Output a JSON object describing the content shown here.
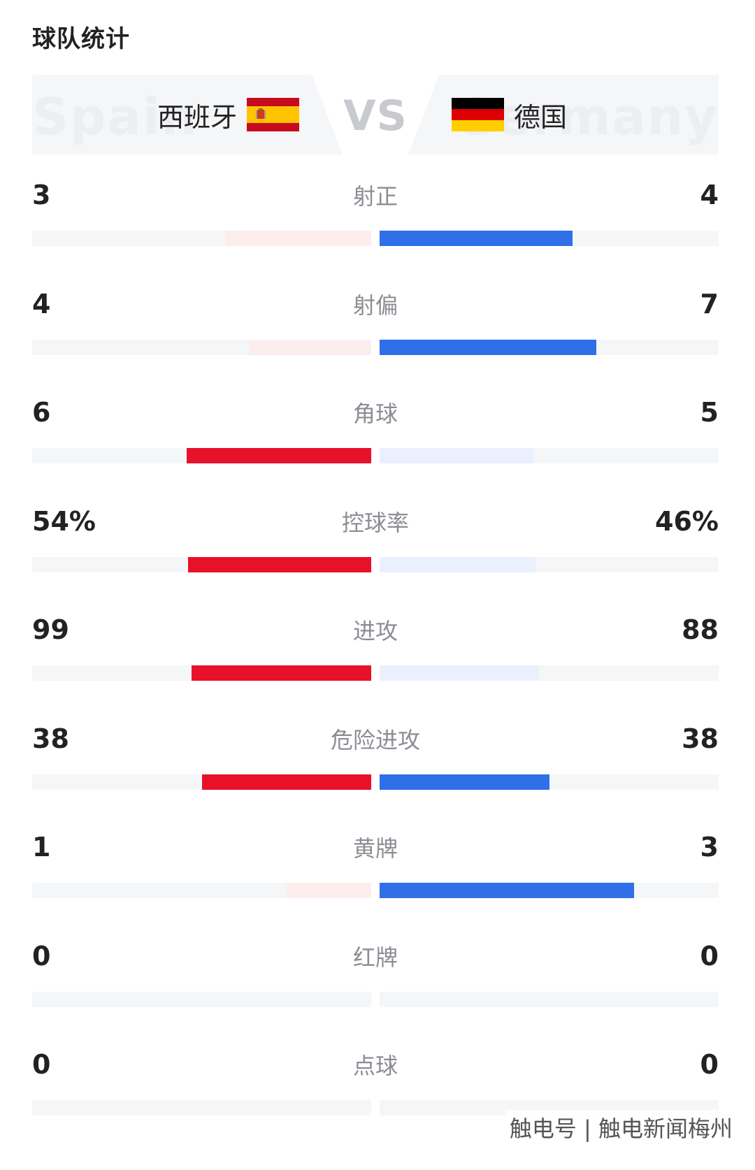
{
  "section_title": "球队统计",
  "teams": {
    "home": {
      "name": "西班牙",
      "watermark": "Spain",
      "flag": "spain-flag-icon"
    },
    "away": {
      "name": "德国",
      "watermark": "Germany",
      "flag": "germany-flag-icon"
    },
    "vs_label": "VS"
  },
  "colors": {
    "home_strong": "#e8112a",
    "home_weak": "#fdeeee",
    "away_strong": "#2f6fe8",
    "away_weak": "#eaf0fd",
    "track": "#f5f6f8"
  },
  "stats": [
    {
      "label": "射正",
      "home": "3",
      "away": "4",
      "home_fill": 0.43,
      "away_fill": 0.57,
      "leader": "away"
    },
    {
      "label": "射偏",
      "home": "4",
      "away": "7",
      "home_fill": 0.36,
      "away_fill": 0.64,
      "leader": "away"
    },
    {
      "label": "角球",
      "home": "6",
      "away": "5",
      "home_fill": 0.545,
      "away_fill": 0.455,
      "leader": "home"
    },
    {
      "label": "控球率",
      "home": "54%",
      "away": "46%",
      "home_fill": 0.54,
      "away_fill": 0.46,
      "leader": "home"
    },
    {
      "label": "进攻",
      "home": "99",
      "away": "88",
      "home_fill": 0.53,
      "away_fill": 0.47,
      "leader": "home"
    },
    {
      "label": "危险进攻",
      "home": "38",
      "away": "38",
      "home_fill": 0.5,
      "away_fill": 0.5,
      "leader": "both"
    },
    {
      "label": "黄牌",
      "home": "1",
      "away": "3",
      "home_fill": 0.25,
      "away_fill": 0.75,
      "leader": "away"
    },
    {
      "label": "红牌",
      "home": "0",
      "away": "0",
      "home_fill": 0,
      "away_fill": 0,
      "leader": "none"
    },
    {
      "label": "点球",
      "home": "0",
      "away": "0",
      "home_fill": 0,
      "away_fill": 0,
      "leader": "none"
    }
  ],
  "source_tag": "触电号 | 触电新闻梅州"
}
